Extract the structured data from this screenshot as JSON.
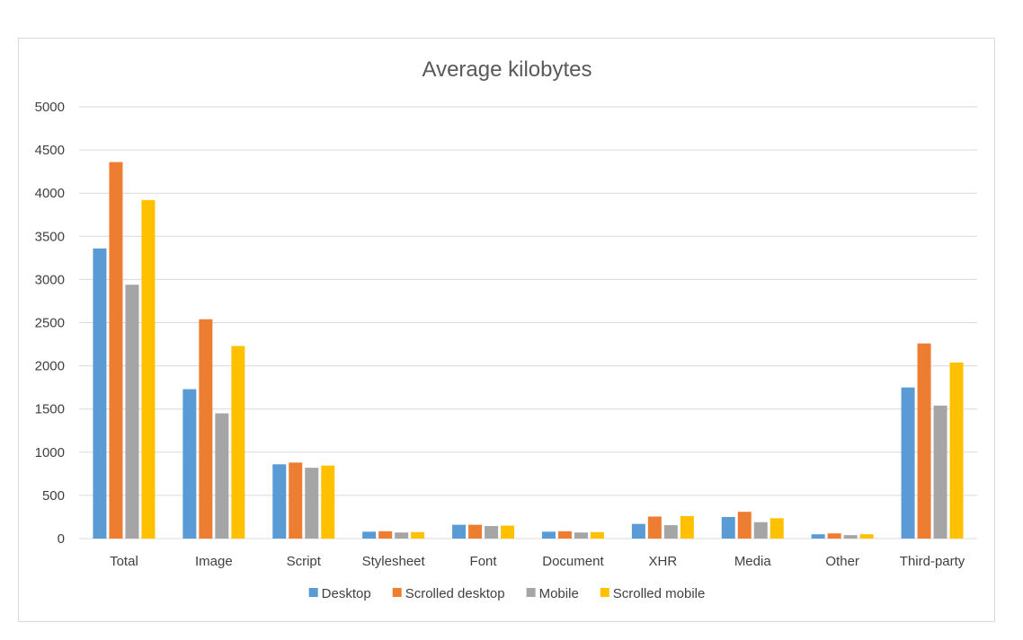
{
  "chart_data": {
    "type": "bar",
    "title": "Average kilobytes",
    "xlabel": "",
    "ylabel": "",
    "categories": [
      "Total",
      "Image",
      "Script",
      "Stylesheet",
      "Font",
      "Document",
      "XHR",
      "Media",
      "Other",
      "Third-party"
    ],
    "yticks": [
      "0",
      "500",
      "1000",
      "1500",
      "2000",
      "2500",
      "3000",
      "3500",
      "4000",
      "4500",
      "5000"
    ],
    "ylim": [
      0,
      5000
    ],
    "grid": true,
    "legend_position": "bottom",
    "series": [
      {
        "name": "Desktop",
        "color": "#5b9bd5",
        "values": [
          3360,
          1730,
          860,
          80,
          160,
          80,
          170,
          250,
          50,
          1750
        ]
      },
      {
        "name": "Scrolled desktop",
        "color": "#ed7d31",
        "values": [
          4360,
          2540,
          880,
          85,
          160,
          85,
          255,
          310,
          60,
          2260
        ]
      },
      {
        "name": "Mobile",
        "color": "#a5a5a5",
        "values": [
          2940,
          1450,
          820,
          70,
          145,
          70,
          155,
          190,
          40,
          1540
        ]
      },
      {
        "name": "Scrolled mobile",
        "color": "#ffc000",
        "values": [
          3920,
          2230,
          845,
          75,
          150,
          75,
          260,
          235,
          50,
          2040
        ]
      }
    ]
  }
}
